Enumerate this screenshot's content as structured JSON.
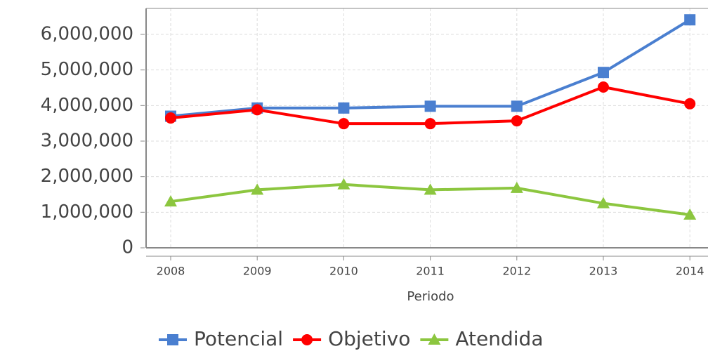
{
  "chart_data": {
    "type": "line",
    "x_label": "Periodo",
    "categories": [
      "2008",
      "2009",
      "2010",
      "2011",
      "2012",
      "2013",
      "2014"
    ],
    "series": [
      {
        "name": "Potencial",
        "color": "#4a7fd0",
        "marker": "square",
        "values": [
          3700000,
          3930000,
          3930000,
          3980000,
          3980000,
          4930000,
          6410000
        ]
      },
      {
        "name": "Objetivo",
        "color": "#ff0000",
        "marker": "circle",
        "values": [
          3650000,
          3880000,
          3490000,
          3490000,
          3570000,
          4520000,
          4050000
        ]
      },
      {
        "name": "Atendida",
        "color": "#8cc63f",
        "marker": "triangle",
        "values": [
          1300000,
          1630000,
          1780000,
          1630000,
          1680000,
          1250000,
          930000
        ]
      }
    ],
    "ylim": [
      0,
      6730000
    ],
    "yticks": [
      0,
      {
        "value": 1000000,
        "label": "1,000,000"
      },
      {
        "value": 2000000,
        "label": "2,000,000"
      },
      {
        "value": 3000000,
        "label": "3,000,000"
      },
      {
        "value": 4000000,
        "label": "4,000,000"
      },
      {
        "value": 5000000,
        "label": "5,000,000"
      },
      {
        "value": 6000000,
        "label": "6,000,000"
      }
    ],
    "grid": true,
    "legend": "bottom"
  }
}
